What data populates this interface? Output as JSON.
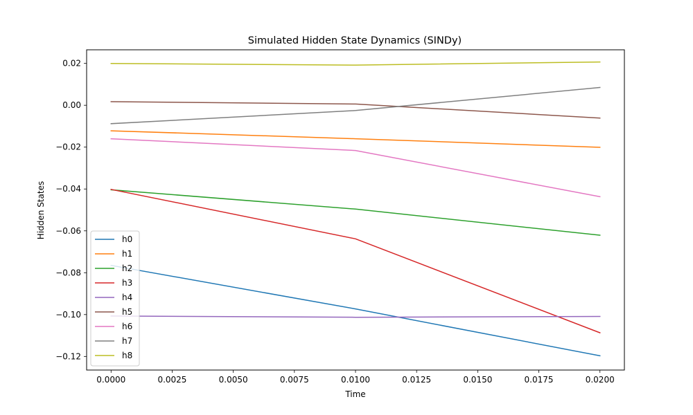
{
  "chart_data": {
    "type": "line",
    "title": "Simulated Hidden State Dynamics (SINDy)",
    "xlabel": "Time",
    "ylabel": "Hidden States",
    "x": [
      0.0,
      0.01,
      0.02
    ],
    "xlim": [
      -0.001,
      0.021
    ],
    "ylim": [
      -0.1265,
      0.0265
    ],
    "xticks": [
      0.0,
      0.0025,
      0.005,
      0.0075,
      0.01,
      0.0125,
      0.015,
      0.0175,
      0.02
    ],
    "xtick_labels": [
      "0.0000",
      "0.0025",
      "0.0050",
      "0.0075",
      "0.0100",
      "0.0125",
      "0.0150",
      "0.0175",
      "0.0200"
    ],
    "yticks": [
      -0.12,
      -0.1,
      -0.08,
      -0.06,
      -0.04,
      -0.02,
      0.0,
      0.02
    ],
    "ytick_labels": [
      "−0.12",
      "−0.10",
      "−0.08",
      "−0.06",
      "−0.04",
      "−0.02",
      "0.00",
      "0.02"
    ],
    "grid": false,
    "legend_position": "lower-left",
    "series": [
      {
        "name": "h0",
        "color": "#1f77b4",
        "values": [
          -0.0765,
          -0.0973,
          -0.1197
        ]
      },
      {
        "name": "h1",
        "color": "#ff7f0e",
        "values": [
          -0.0122,
          -0.016,
          -0.0201
        ]
      },
      {
        "name": "h2",
        "color": "#2ca02c",
        "values": [
          -0.0404,
          -0.0496,
          -0.0621
        ]
      },
      {
        "name": "h3",
        "color": "#d62728",
        "values": [
          -0.0402,
          -0.0638,
          -0.1087
        ]
      },
      {
        "name": "h4",
        "color": "#9467bd",
        "values": [
          -0.1007,
          -0.1013,
          -0.1009
        ]
      },
      {
        "name": "h5",
        "color": "#8c564b",
        "values": [
          0.0017,
          0.0006,
          -0.0061
        ]
      },
      {
        "name": "h6",
        "color": "#e377c2",
        "values": [
          -0.016,
          -0.0216,
          -0.0437
        ]
      },
      {
        "name": "h7",
        "color": "#7f7f7f",
        "values": [
          -0.0088,
          -0.0025,
          0.0085
        ]
      },
      {
        "name": "h8",
        "color": "#bcbd22",
        "values": [
          0.02,
          0.0192,
          0.0207
        ]
      }
    ]
  }
}
